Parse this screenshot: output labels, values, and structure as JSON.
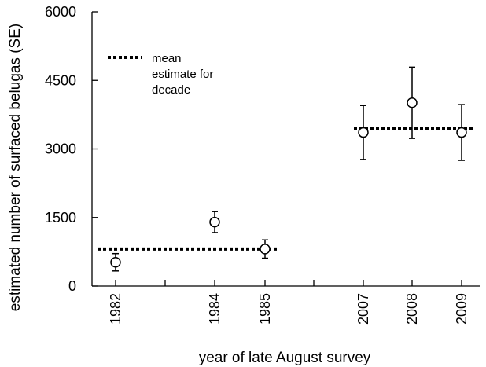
{
  "chart_data": {
    "type": "scatter",
    "title": "",
    "xlabel": "year of late August survey",
    "ylabel": "estimated number of surfaced belugas (SE)",
    "ylim": [
      0,
      6000
    ],
    "yticks": [
      "0",
      "1500",
      "3000",
      "4500",
      "6000"
    ],
    "categories": [
      "1982",
      "1984",
      "1985",
      "2007",
      "2008",
      "2009"
    ],
    "points": [
      {
        "x": "1982",
        "y": 520,
        "se": 190
      },
      {
        "x": "1984",
        "y": 1400,
        "se": 230
      },
      {
        "x": "1985",
        "y": 810,
        "se": 200
      },
      {
        "x": "2007",
        "y": 3360,
        "se": 590
      },
      {
        "x": "2008",
        "y": 4010,
        "se": 780
      },
      {
        "x": "2009",
        "y": 3360,
        "se": 610
      }
    ],
    "decade_means": [
      {
        "from": "1982",
        "to": "1985",
        "y": 810
      },
      {
        "from": "2007",
        "to": "2009",
        "y": 3440
      }
    ],
    "legend": {
      "position": "top-left",
      "entries": [
        "mean",
        "estimate for",
        "decade"
      ]
    },
    "marker": "open-circle",
    "grid": false
  }
}
